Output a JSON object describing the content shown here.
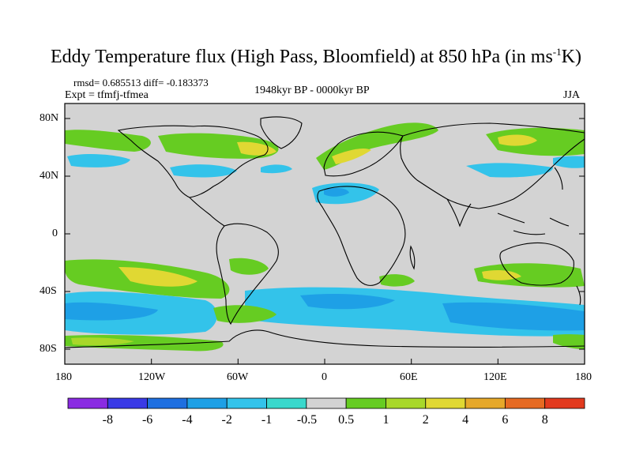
{
  "title": {
    "main": "Eddy Temperature flux (High Pass, Bloomfield) at 850 hPa (in ms",
    "superscript": "-1",
    "unit_tail": "K)"
  },
  "stats": "rmsd= 0.685513 diff= -0.183373",
  "experiment": "Expt = tfmfj-tfmea",
  "period": "1948kyr BP - 0000kyr BP",
  "season": "JJA",
  "lat_labels": [
    "80N",
    "40N",
    "0",
    "40S",
    "80S"
  ],
  "lon_labels": [
    "180",
    "120W",
    "60W",
    "0",
    "60E",
    "120E",
    "180"
  ],
  "colorbar": {
    "labels": [
      "-8",
      "-6",
      "-4",
      "-2",
      "-1",
      "-0.5",
      "0.5",
      "1",
      "2",
      "4",
      "6",
      "8"
    ],
    "colors": [
      "#8a2be2",
      "#3a3ae6",
      "#1e6fe0",
      "#1ea0e6",
      "#33c3ea",
      "#3ad8cc",
      "#d3d3d3",
      "#66cc22",
      "#a8d82a",
      "#e0d833",
      "#e6a82a",
      "#e66a22",
      "#e23a1e"
    ]
  },
  "map_colors": {
    "neutral": "#d3d3d3",
    "blue": "#1ea0e6",
    "light_blue": "#33c3ea",
    "cyan": "#3ad8cc",
    "green": "#66cc22",
    "yellow_green": "#a8d82a",
    "yellow": "#e0d833"
  }
}
